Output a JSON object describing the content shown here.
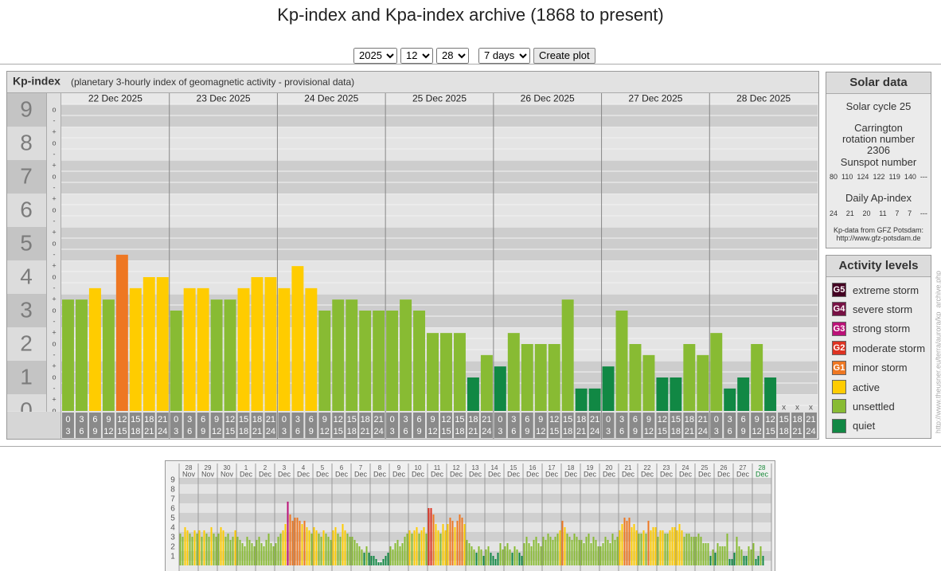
{
  "header": {
    "title": "Kp-index and Kpa-index archive (1868 to present)"
  },
  "controls": {
    "year": "2025",
    "month": "12",
    "day": "28",
    "span": "7 days",
    "button": "Create plot"
  },
  "chart_data": [
    {
      "type": "bar",
      "title": "Kp-index",
      "subtitle": "(planetary 3-hourly index of geomagnetic activity - provisional data)",
      "days": [
        "22 Dec 2025",
        "23 Dec 2025",
        "24 Dec 2025",
        "25 Dec 2025",
        "26 Dec 2025",
        "27 Dec 2025",
        "28 Dec 2025"
      ],
      "hours": [
        [
          "0",
          "3"
        ],
        [
          "3",
          "6"
        ],
        [
          "6",
          "9"
        ],
        [
          "9",
          "12"
        ],
        [
          "12",
          "15"
        ],
        [
          "15",
          "18"
        ],
        [
          "18",
          "21"
        ],
        [
          "21",
          "24"
        ]
      ],
      "values": [
        3.33,
        3.33,
        3.67,
        3.33,
        4.67,
        3.67,
        4,
        4,
        3,
        3.67,
        3.67,
        3.33,
        3.33,
        3.67,
        4,
        4,
        3.67,
        4.33,
        3.67,
        3,
        3.33,
        3.33,
        3,
        3,
        3,
        3.33,
        3,
        2.33,
        2.33,
        2.33,
        1,
        1.67,
        1.33,
        2.33,
        2,
        2,
        2,
        3.33,
        0.67,
        0.67,
        1.33,
        3,
        2,
        1.67,
        1,
        1,
        2,
        1.67,
        2.33,
        0.67,
        1,
        2,
        1,
        null,
        null,
        null
      ],
      "colors": [
        "#8b3",
        "#8b3",
        "#fc0",
        "#8b3",
        "#e72",
        "#fc0",
        "#fc0",
        "#fc0",
        "#8b3",
        "#fc0",
        "#fc0",
        "#8b3",
        "#8b3",
        "#fc0",
        "#fc0",
        "#fc0",
        "#fc0",
        "#fc0",
        "#fc0",
        "#8b3",
        "#8b3",
        "#8b3",
        "#8b3",
        "#8b3",
        "#8b3",
        "#8b3",
        "#8b3",
        "#8b3",
        "#8b3",
        "#8b3",
        "#184",
        "#8b3",
        "#184",
        "#8b3",
        "#8b3",
        "#8b3",
        "#8b3",
        "#8b3",
        "#184",
        "#184",
        "#184",
        "#8b3",
        "#8b3",
        "#8b3",
        "#184",
        "#184",
        "#8b3",
        "#8b3",
        "#8b3",
        "#184",
        "#184",
        "#8b3",
        "#184",
        null,
        null,
        null
      ],
      "missing_label": "x",
      "ylim": [
        0,
        9.5
      ],
      "yticks": [
        0,
        1,
        2,
        3,
        4,
        5,
        6,
        7,
        8,
        9
      ],
      "sub_labels": [
        "+",
        "o",
        "-"
      ],
      "grid": true
    },
    {
      "type": "bar",
      "days": [
        [
          "28",
          "Nov"
        ],
        [
          "29",
          "Nov"
        ],
        [
          "30",
          "Nov"
        ],
        [
          "1",
          "Dec"
        ],
        [
          "2",
          "Dec"
        ],
        [
          "3",
          "Dec"
        ],
        [
          "4",
          "Dec"
        ],
        [
          "5",
          "Dec"
        ],
        [
          "6",
          "Dec"
        ],
        [
          "7",
          "Dec"
        ],
        [
          "8",
          "Dec"
        ],
        [
          "9",
          "Dec"
        ],
        [
          "10",
          "Dec"
        ],
        [
          "11",
          "Dec"
        ],
        [
          "12",
          "Dec"
        ],
        [
          "13",
          "Dec"
        ],
        [
          "14",
          "Dec"
        ],
        [
          "15",
          "Dec"
        ],
        [
          "16",
          "Dec"
        ],
        [
          "17",
          "Dec"
        ],
        [
          "18",
          "Dec"
        ],
        [
          "19",
          "Dec"
        ],
        [
          "20",
          "Dec"
        ],
        [
          "21",
          "Dec"
        ],
        [
          "22",
          "Dec"
        ],
        [
          "23",
          "Dec"
        ],
        [
          "24",
          "Dec"
        ],
        [
          "25",
          "Dec"
        ],
        [
          "26",
          "Dec"
        ],
        [
          "27",
          "Dec"
        ],
        [
          "28",
          "Dec"
        ]
      ],
      "last_day_color": "#1a8a3a",
      "values": [
        3.33,
        3,
        4,
        3.67,
        3.33,
        3,
        3.67,
        3.33,
        3.67,
        3,
        3.67,
        3.33,
        3,
        4,
        3.33,
        3,
        3.33,
        4,
        3.67,
        3,
        3.33,
        2.67,
        3,
        3.67,
        3,
        2.67,
        2.33,
        2,
        3,
        2.67,
        2.33,
        2,
        2.67,
        3,
        2.33,
        2,
        2.67,
        3.33,
        2.33,
        2,
        2.33,
        3,
        3.33,
        3.67,
        4.33,
        6.67,
        5.33,
        4.67,
        5,
        5,
        4.67,
        4.33,
        4.67,
        4,
        3.67,
        3.33,
        4,
        3.67,
        3.33,
        3,
        3.67,
        3.33,
        3,
        2.67,
        3.67,
        4,
        3.33,
        3,
        4.33,
        3.67,
        3.33,
        3,
        3,
        2.67,
        2.33,
        2,
        1.67,
        1.33,
        2,
        1.33,
        1,
        1,
        0.67,
        0.33,
        0.33,
        0.67,
        1,
        1.33,
        2,
        1.67,
        2.33,
        2.67,
        2,
        2.33,
        3,
        3.33,
        3.67,
        3.33,
        3.67,
        4,
        3.33,
        3.67,
        4,
        3.33,
        6,
        6,
        5.33,
        4.33,
        3.67,
        3.33,
        4.33,
        3.67,
        4.33,
        5,
        4.67,
        4,
        4.67,
        5.33,
        5,
        4.33,
        2.67,
        2.33,
        2,
        1.67,
        1.33,
        2,
        1.67,
        1,
        1.67,
        2,
        1.33,
        1,
        0.67,
        1.33,
        2.33,
        1.67,
        2,
        2.33,
        1.67,
        1.33,
        2,
        1.67,
        1.33,
        1,
        2.33,
        3,
        2.33,
        2,
        2.67,
        3,
        2.33,
        2,
        3,
        2.67,
        3.33,
        3,
        2.67,
        3,
        3.33,
        3.67,
        4.67,
        4,
        3.33,
        3,
        2.67,
        3.33,
        3,
        2.67,
        2.67,
        2.33,
        3,
        3.33,
        2.33,
        3,
        2.67,
        2,
        2,
        2.33,
        3,
        2.67,
        2.33,
        3.33,
        2.67,
        3,
        3.67,
        4.33,
        5,
        4.67,
        5,
        4,
        4.33,
        3.67,
        3.33,
        3.33,
        3.67,
        3.33,
        4.67,
        3.67,
        4,
        4,
        3,
        3.67,
        3.67,
        3.33,
        3.33,
        3.67,
        4,
        4,
        3.67,
        4.33,
        3.67,
        3,
        3.33,
        3.33,
        3,
        3,
        3,
        3.33,
        3,
        2.33,
        2.33,
        2.33,
        1,
        1.67,
        1.33,
        2.33,
        2,
        2,
        2,
        3.33,
        0.67,
        0.67,
        1.33,
        3,
        2,
        1.67,
        1,
        1,
        2,
        1.67,
        2.33,
        0.67,
        1,
        2,
        1,
        null,
        null,
        null
      ],
      "colors": [
        "#8b3",
        "#8b3",
        "#fc0",
        "#fc0",
        "#8b3",
        "#8b3",
        "#fc0",
        "#8b3",
        "#fc0",
        "#8b3",
        "#fc0",
        "#8b3",
        "#8b3",
        "#fc0",
        "#8b3",
        "#8b3",
        "#8b3",
        "#fc0",
        "#fc0",
        "#8b3",
        "#8b3",
        "#8b3",
        "#8b3",
        "#fc0",
        "#8b3",
        "#8b3",
        "#8b3",
        "#8b3",
        "#8b3",
        "#8b3",
        "#8b3",
        "#8b3",
        "#8b3",
        "#8b3",
        "#8b3",
        "#8b3",
        "#8b3",
        "#8b3",
        "#8b3",
        "#8b3",
        "#8b3",
        "#8b3",
        "#8b3",
        "#fc0",
        "#fc0",
        "#b17",
        "#e72",
        "#e72",
        "#e72",
        "#e72",
        "#e72",
        "#fc0",
        "#e72",
        "#fc0",
        "#fc0",
        "#8b3",
        "#fc0",
        "#fc0",
        "#8b3",
        "#8b3",
        "#fc0",
        "#8b3",
        "#8b3",
        "#8b3",
        "#fc0",
        "#fc0",
        "#8b3",
        "#8b3",
        "#fc0",
        "#fc0",
        "#8b3",
        "#8b3",
        "#8b3",
        "#8b3",
        "#8b3",
        "#8b3",
        "#8b3",
        "#184",
        "#8b3",
        "#184",
        "#184",
        "#184",
        "#184",
        "#184",
        "#184",
        "#184",
        "#184",
        "#184",
        "#8b3",
        "#8b3",
        "#8b3",
        "#8b3",
        "#8b3",
        "#8b3",
        "#8b3",
        "#8b3",
        "#fc0",
        "#8b3",
        "#fc0",
        "#fc0",
        "#8b3",
        "#fc0",
        "#fc0",
        "#8b3",
        "#d32",
        "#d32",
        "#e72",
        "#fc0",
        "#fc0",
        "#8b3",
        "#fc0",
        "#fc0",
        "#fc0",
        "#e72",
        "#e72",
        "#fc0",
        "#e72",
        "#e72",
        "#e72",
        "#fc0",
        "#8b3",
        "#8b3",
        "#8b3",
        "#8b3",
        "#184",
        "#8b3",
        "#8b3",
        "#184",
        "#8b3",
        "#8b3",
        "#184",
        "#184",
        "#184",
        "#184",
        "#8b3",
        "#8b3",
        "#8b3",
        "#8b3",
        "#8b3",
        "#184",
        "#8b3",
        "#8b3",
        "#184",
        "#184",
        "#8b3",
        "#8b3",
        "#8b3",
        "#8b3",
        "#8b3",
        "#8b3",
        "#8b3",
        "#8b3",
        "#8b3",
        "#8b3",
        "#8b3",
        "#8b3",
        "#8b3",
        "#8b3",
        "#8b3",
        "#fc0",
        "#e72",
        "#fc0",
        "#8b3",
        "#8b3",
        "#8b3",
        "#8b3",
        "#8b3",
        "#8b3",
        "#8b3",
        "#8b3",
        "#8b3",
        "#8b3",
        "#8b3",
        "#8b3",
        "#8b3",
        "#8b3",
        "#8b3",
        "#8b3",
        "#8b3",
        "#8b3",
        "#8b3",
        "#8b3",
        "#8b3",
        "#8b3",
        "#fc0",
        "#fc0",
        "#e72",
        "#e72",
        "#e72",
        "#fc0",
        "#fc0",
        "#fc0",
        "#8b3",
        "#8b3",
        "#fc0",
        "#8b3",
        "#e72",
        "#fc0",
        "#fc0",
        "#fc0",
        "#8b3",
        "#fc0",
        "#fc0",
        "#8b3",
        "#8b3",
        "#fc0",
        "#fc0",
        "#fc0",
        "#fc0",
        "#fc0",
        "#fc0",
        "#8b3",
        "#8b3",
        "#8b3",
        "#8b3",
        "#8b3",
        "#8b3",
        "#8b3",
        "#8b3",
        "#8b3",
        "#8b3",
        "#8b3",
        "#184",
        "#8b3",
        "#184",
        "#8b3",
        "#8b3",
        "#8b3",
        "#8b3",
        "#8b3",
        "#184",
        "#184",
        "#184",
        "#8b3",
        "#8b3",
        "#8b3",
        "#184",
        "#184",
        "#8b3",
        "#8b3",
        "#8b3",
        "#184",
        "#184",
        "#8b3",
        "#184",
        null,
        null,
        null
      ],
      "ylim": [
        0,
        9.33
      ],
      "yticks": [
        1,
        2,
        3,
        4,
        5,
        6,
        7,
        8,
        9
      ],
      "grid": true
    }
  ],
  "solar_data": {
    "title": "Solar data",
    "cycle": "Solar cycle 25",
    "carrington": "Carrington rotation number 2306",
    "sunspot_title": "Sunspot number",
    "sunspots": [
      "80",
      "110",
      "124",
      "122",
      "119",
      "140",
      "---"
    ],
    "ap_title": "Daily Ap-index",
    "ap": [
      "24",
      "21",
      "20",
      "11",
      "7",
      "7",
      "---"
    ],
    "source": "Kp-data from GFZ Potsdam:",
    "source_url": "http://www.gfz-potsdam.de"
  },
  "activity_levels": {
    "title": "Activity levels",
    "items": [
      {
        "badge": "G5",
        "label": "extreme storm",
        "color": "#402"
      },
      {
        "badge": "G4",
        "label": "severe storm",
        "color": "#714"
      },
      {
        "badge": "G3",
        "label": "strong storm",
        "color": "#b17"
      },
      {
        "badge": "G2",
        "label": "moderate storm",
        "color": "#d32"
      },
      {
        "badge": "G1",
        "label": "minor storm",
        "color": "#e72"
      },
      {
        "label": "active",
        "color": "#fc0"
      },
      {
        "label": "unsettled",
        "color": "#8b3"
      },
      {
        "label": "quiet",
        "color": "#184"
      }
    ]
  },
  "page_url": "http://www.theusner.eu/terra/aurora/kp_archive.php"
}
